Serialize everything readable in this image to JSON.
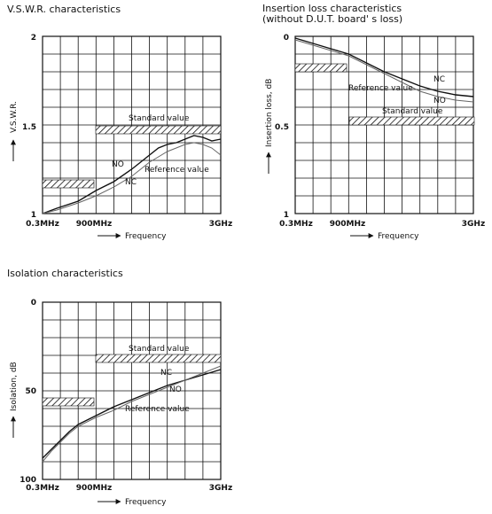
{
  "chart_data": [
    {
      "type": "line",
      "title": "V.S.W.R. characteristics",
      "ylabel": "V.S.W.R.",
      "xlabel": "Frequency",
      "ylim": [
        1,
        2
      ],
      "y_ticks": [
        "2",
        "1.5",
        "1"
      ],
      "x_ticks": [
        "0.3MHz",
        "900MHz",
        "3GHz"
      ],
      "grid": true,
      "standard_value": {
        "label": "Standard value",
        "segments": [
          {
            "x_from": "0.3MHz",
            "x_to": "900MHz",
            "value": 1.17
          },
          {
            "x_from": "900MHz",
            "x_to": "3GHz",
            "value": 1.48
          }
        ]
      },
      "series": [
        {
          "name": "NO",
          "points": [
            [
              0,
              1.0
            ],
            [
              0.08,
              1.03
            ],
            [
              0.2,
              1.07
            ],
            [
              0.3,
              1.13
            ],
            [
              0.4,
              1.18
            ],
            [
              0.5,
              1.25
            ],
            [
              0.55,
              1.29
            ],
            [
              0.6,
              1.33
            ],
            [
              0.65,
              1.37
            ],
            [
              0.7,
              1.39
            ],
            [
              0.75,
              1.4
            ],
            [
              0.8,
              1.42
            ],
            [
              0.85,
              1.44
            ],
            [
              0.9,
              1.43
            ],
            [
              0.95,
              1.41
            ],
            [
              1.0,
              1.42
            ]
          ]
        },
        {
          "name": "NC",
          "points": [
            [
              0,
              1.0
            ],
            [
              0.08,
              1.02
            ],
            [
              0.2,
              1.06
            ],
            [
              0.3,
              1.1
            ],
            [
              0.4,
              1.15
            ],
            [
              0.5,
              1.21
            ],
            [
              0.55,
              1.25
            ],
            [
              0.6,
              1.29
            ],
            [
              0.65,
              1.32
            ],
            [
              0.7,
              1.35
            ],
            [
              0.75,
              1.37
            ],
            [
              0.8,
              1.39
            ],
            [
              0.85,
              1.4
            ],
            [
              0.9,
              1.39
            ],
            [
              0.95,
              1.37
            ],
            [
              1.0,
              1.33
            ]
          ]
        }
      ],
      "annotations": [
        {
          "text": "NO"
        },
        {
          "text": "NC"
        },
        {
          "text": "Reference value"
        }
      ]
    },
    {
      "type": "line",
      "title": "Insertion loss characteristics",
      "subtitle": "(without D.U.T. board' s loss)",
      "ylabel": "Insertion loss, dB",
      "xlabel": "Frequency",
      "ylim": [
        0,
        1
      ],
      "y_ticks": [
        "0",
        "0.5",
        "1"
      ],
      "x_ticks": [
        "0.3MHz",
        "900MHz",
        "3GHz"
      ],
      "grid": true,
      "standard_value": {
        "label": "Standard value",
        "segments": [
          {
            "x_from": "0.3MHz",
            "x_to": "900MHz",
            "value": 0.18
          },
          {
            "x_from": "900MHz",
            "x_to": "3GHz",
            "value": 0.48
          }
        ]
      },
      "series": [
        {
          "name": "NC",
          "points": [
            [
              0,
              0.01
            ],
            [
              0.1,
              0.04
            ],
            [
              0.2,
              0.07
            ],
            [
              0.3,
              0.1
            ],
            [
              0.4,
              0.15
            ],
            [
              0.5,
              0.2
            ],
            [
              0.6,
              0.24
            ],
            [
              0.7,
              0.28
            ],
            [
              0.8,
              0.31
            ],
            [
              0.9,
              0.33
            ],
            [
              1.0,
              0.34
            ]
          ]
        },
        {
          "name": "NO",
          "points": [
            [
              0,
              0.02
            ],
            [
              0.1,
              0.05
            ],
            [
              0.2,
              0.08
            ],
            [
              0.3,
              0.11
            ],
            [
              0.4,
              0.16
            ],
            [
              0.5,
              0.21
            ],
            [
              0.6,
              0.26
            ],
            [
              0.7,
              0.31
            ],
            [
              0.8,
              0.34
            ],
            [
              0.9,
              0.36
            ],
            [
              1.0,
              0.37
            ]
          ]
        }
      ],
      "annotations": [
        {
          "text": "NC"
        },
        {
          "text": "NO"
        },
        {
          "text": "Reference value"
        }
      ]
    },
    {
      "type": "line",
      "title": "Isolation characteristics",
      "ylabel": "Isolation, dB",
      "xlabel": "Frequency",
      "ylim": [
        0,
        100
      ],
      "y_ticks": [
        "0",
        "50",
        "100"
      ],
      "x_ticks": [
        "0.3MHz",
        "900MHz",
        "3GHz"
      ],
      "grid": true,
      "standard_value": {
        "label": "Standard value",
        "segments": [
          {
            "x_from": "0.3MHz",
            "x_to": "900MHz",
            "value": 57
          },
          {
            "x_from": "900MHz",
            "x_to": "3GHz",
            "value": 32
          }
        ]
      },
      "series": [
        {
          "name": "NC",
          "points": [
            [
              0,
              88
            ],
            [
              0.05,
              83
            ],
            [
              0.1,
              78
            ],
            [
              0.15,
              73
            ],
            [
              0.2,
              69
            ],
            [
              0.3,
              64
            ],
            [
              0.4,
              59
            ],
            [
              0.5,
              55
            ],
            [
              0.6,
              51
            ],
            [
              0.7,
              47
            ],
            [
              0.8,
              44
            ],
            [
              0.9,
              41
            ],
            [
              1.0,
              38
            ]
          ]
        },
        {
          "name": "NO",
          "points": [
            [
              0,
              90
            ],
            [
              0.05,
              84
            ],
            [
              0.1,
              79
            ],
            [
              0.15,
              74
            ],
            [
              0.2,
              70
            ],
            [
              0.3,
              65
            ],
            [
              0.4,
              61
            ],
            [
              0.5,
              56
            ],
            [
              0.6,
              52
            ],
            [
              0.7,
              48
            ],
            [
              0.8,
              44
            ],
            [
              0.9,
              40
            ],
            [
              1.0,
              36
            ]
          ]
        }
      ],
      "annotations": [
        {
          "text": "NC"
        },
        {
          "text": "NO"
        },
        {
          "text": "Reference value"
        }
      ]
    }
  ]
}
